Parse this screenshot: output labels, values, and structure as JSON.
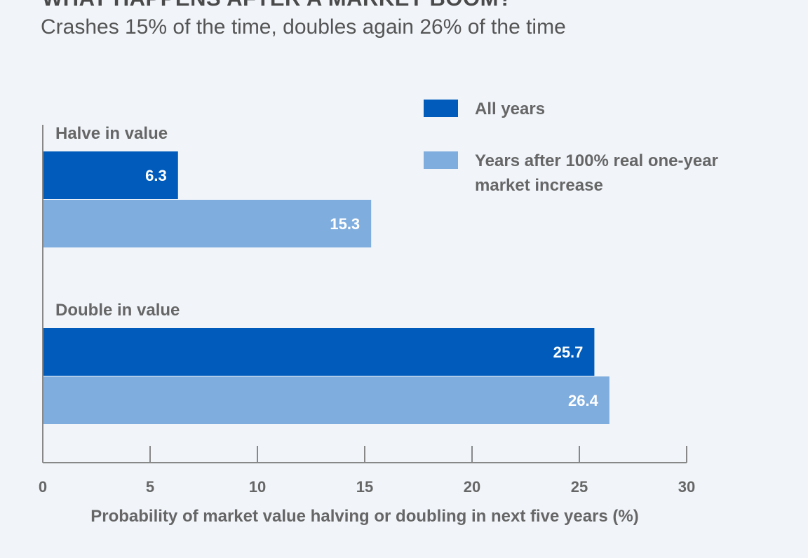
{
  "title": "WHAT HAPPENS AFTER A MARKET BOOM?",
  "subtitle": "Crashes 15% of the time, doubles again 26% of the time",
  "chart_data": {
    "type": "bar",
    "orientation": "horizontal",
    "categories": [
      "Halve in value",
      "Double in value"
    ],
    "series": [
      {
        "name": "All years",
        "values": [
          6.3,
          25.7
        ],
        "color": "#005bbb"
      },
      {
        "name": "Years after 100% real one-year market increase",
        "legend_lines": [
          "Years after 100% real one-year",
          "market increase"
        ],
        "values": [
          15.3,
          26.4
        ],
        "color": "#7fadde"
      }
    ],
    "xlabel": "Probability of market value halving or doubling in next five years (%)",
    "xlim": [
      0,
      30
    ],
    "xticks": [
      0,
      5,
      10,
      15,
      20,
      25,
      30
    ],
    "grid": false,
    "legend_position": "top-right",
    "data_labels": true
  }
}
